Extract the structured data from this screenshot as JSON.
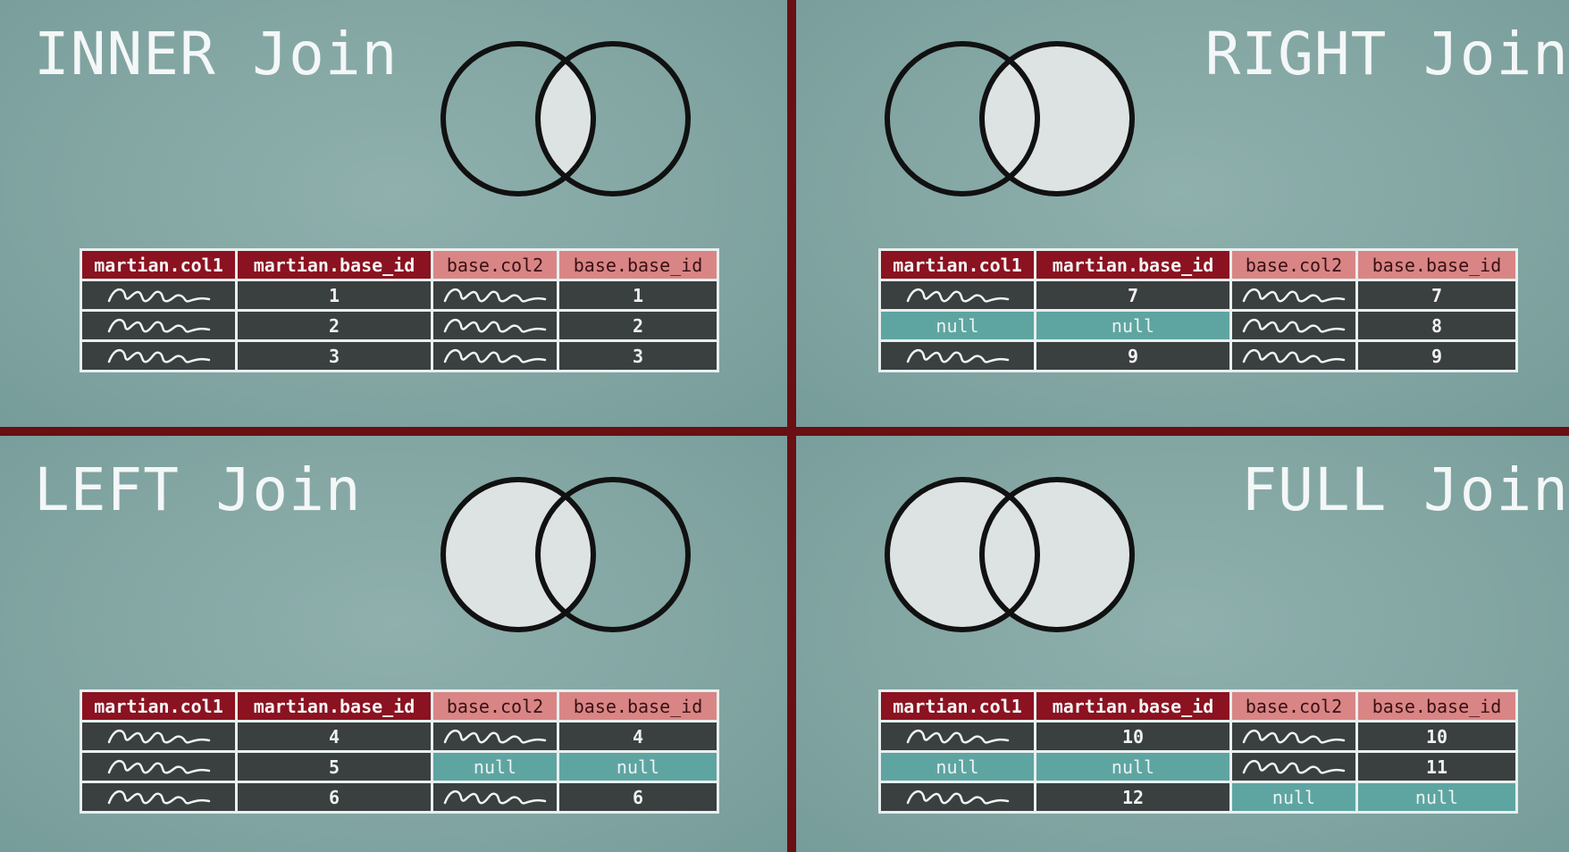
{
  "panels": {
    "inner": {
      "title": "INNER Join",
      "fill": "intersection",
      "headers": [
        "martian.col1",
        "martian.base_id",
        "base.col2",
        "base.base_id"
      ],
      "rows": [
        [
          "~",
          "1",
          "~",
          "1"
        ],
        [
          "~",
          "2",
          "~",
          "2"
        ],
        [
          "~",
          "3",
          "~",
          "3"
        ]
      ]
    },
    "right": {
      "title": "RIGHT Join",
      "fill": "right",
      "headers": [
        "martian.col1",
        "martian.base_id",
        "base.col2",
        "base.base_id"
      ],
      "rows": [
        [
          "~",
          "7",
          "~",
          "7"
        ],
        [
          "null",
          "null",
          "~",
          "8"
        ],
        [
          "~",
          "9",
          "~",
          "9"
        ]
      ]
    },
    "left": {
      "title": "LEFT Join",
      "fill": "left",
      "headers": [
        "martian.col1",
        "martian.base_id",
        "base.col2",
        "base.base_id"
      ],
      "rows": [
        [
          "~",
          "4",
          "~",
          "4"
        ],
        [
          "~",
          "5",
          "null",
          "null"
        ],
        [
          "~",
          "6",
          "~",
          "6"
        ]
      ]
    },
    "full": {
      "title": "FULL Join",
      "fill": "full",
      "headers": [
        "martian.col1",
        "martian.base_id",
        "base.col2",
        "base.base_id"
      ],
      "rows": [
        [
          "~",
          "10",
          "~",
          "10"
        ],
        [
          "null",
          "null",
          "~",
          "11"
        ],
        [
          "~",
          "12",
          "null",
          "null"
        ]
      ]
    }
  },
  "colors": {
    "divider": "#6a0f14",
    "panel_bg": "#83a6a3",
    "header_martian": "#8b1220",
    "header_base": "#d98585",
    "cell": "#3a3f40",
    "null_cell": "#5ea5a1",
    "venn_fill": "#dde3e3"
  }
}
